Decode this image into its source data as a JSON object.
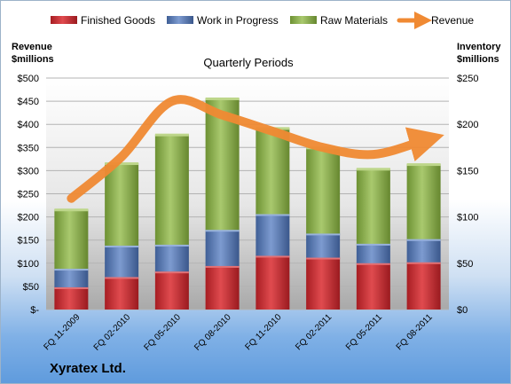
{
  "chart_data": {
    "type": "bar",
    "stacked": true,
    "title": "Quarterly Periods",
    "company": "Xyratex Ltd.",
    "left_axis": {
      "label_line1": "Revenue",
      "label_line2": "$millions",
      "ylim": [
        0,
        500
      ],
      "ticks": [
        "$-",
        "$50",
        "$100",
        "$150",
        "$200",
        "$250",
        "$300",
        "$350",
        "$400",
        "$450",
        "$500"
      ]
    },
    "right_axis": {
      "label_line1": "Inventory",
      "label_line2": "$millions",
      "ylim": [
        0,
        250
      ],
      "ticks": [
        "$0",
        "$50",
        "$100",
        "$150",
        "$200",
        "$250"
      ]
    },
    "categories": [
      "FQ 11-2009",
      "FQ 02-2010",
      "FQ 05-2010",
      "FQ 08-2010",
      "FQ 11-2010",
      "FQ 02-2011",
      "FQ 05-2011",
      "FQ 08-2011"
    ],
    "series": [
      {
        "name": "Finished Goods",
        "axis": "right",
        "color": "#c0282d",
        "values": [
          24,
          35,
          41,
          47,
          58,
          56,
          50,
          51
        ]
      },
      {
        "name": "Work in Progress",
        "axis": "right",
        "color": "#4f6fa8",
        "values": [
          20,
          34,
          29,
          39,
          45,
          26,
          21,
          25
        ]
      },
      {
        "name": "Raw Materials",
        "axis": "right",
        "color": "#7fa33f",
        "values": [
          64,
          89,
          119,
          142,
          93,
          93,
          81,
          81
        ]
      },
      {
        "name": "Revenue",
        "axis": "left",
        "type": "line",
        "color": "#f08a33",
        "values": [
          240,
          330,
          450,
          420,
          385,
          350,
          335,
          365
        ]
      }
    ],
    "grid": true,
    "legend_position": "top"
  }
}
